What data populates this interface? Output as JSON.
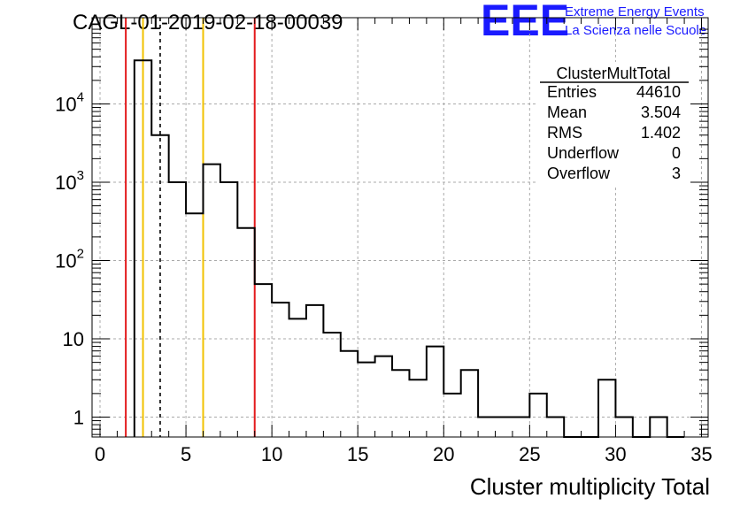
{
  "header": {
    "title": "CAGL-01-2019-02-18-00039",
    "logo": {
      "mark": "EEE",
      "line1": "Extreme Energy Events",
      "line2": "La Scienza nelle Scuole",
      "color": "#1a1aff"
    }
  },
  "stats": {
    "name": "ClusterMultTotal",
    "rows": [
      {
        "label": "Entries",
        "value": "44610"
      },
      {
        "label": "Mean",
        "value": "3.504"
      },
      {
        "label": "RMS",
        "value": "1.402"
      },
      {
        "label": "Underflow",
        "value": "0"
      },
      {
        "label": "Overflow",
        "value": "3"
      }
    ]
  },
  "chart_data": {
    "type": "histogram",
    "xlabel": "Cluster multiplicity Total",
    "ylabel": "",
    "xlim": [
      -0.5,
      35.5
    ],
    "ylim": [
      0.5,
      70000
    ],
    "yscale": "log",
    "grid": true,
    "bin_width": 1,
    "bins": [
      {
        "x": 2.5,
        "count": 36000
      },
      {
        "x": 3.5,
        "count": 4000
      },
      {
        "x": 4.5,
        "count": 1000
      },
      {
        "x": 5.5,
        "count": 400
      },
      {
        "x": 6.5,
        "count": 1700
      },
      {
        "x": 7.5,
        "count": 1000
      },
      {
        "x": 8.5,
        "count": 260
      },
      {
        "x": 9.5,
        "count": 50
      },
      {
        "x": 10.5,
        "count": 29
      },
      {
        "x": 11.5,
        "count": 18
      },
      {
        "x": 12.5,
        "count": 27
      },
      {
        "x": 13.5,
        "count": 12
      },
      {
        "x": 14.5,
        "count": 7
      },
      {
        "x": 15.5,
        "count": 5
      },
      {
        "x": 16.5,
        "count": 6
      },
      {
        "x": 17.5,
        "count": 4
      },
      {
        "x": 18.5,
        "count": 3
      },
      {
        "x": 19.5,
        "count": 8
      },
      {
        "x": 20.5,
        "count": 2
      },
      {
        "x": 21.5,
        "count": 4
      },
      {
        "x": 22.5,
        "count": 1
      },
      {
        "x": 23.5,
        "count": 1
      },
      {
        "x": 24.5,
        "count": 1
      },
      {
        "x": 25.5,
        "count": 2
      },
      {
        "x": 26.5,
        "count": 1
      },
      {
        "x": 27.5,
        "count": 0
      },
      {
        "x": 28.5,
        "count": 0
      },
      {
        "x": 29.5,
        "count": 3
      },
      {
        "x": 30.5,
        "count": 1
      },
      {
        "x": 31.5,
        "count": 0
      },
      {
        "x": 32.5,
        "count": 1
      },
      {
        "x": 33.5,
        "count": 0
      }
    ],
    "xticks": [
      {
        "value": 0,
        "label": "0"
      },
      {
        "value": 5,
        "label": "5"
      },
      {
        "value": 10,
        "label": "10"
      },
      {
        "value": 15,
        "label": "15"
      },
      {
        "value": 20,
        "label": "20"
      },
      {
        "value": 25,
        "label": "25"
      },
      {
        "value": 30,
        "label": "30"
      },
      {
        "value": 35,
        "label": "35"
      }
    ],
    "yticks": [
      {
        "value": 1,
        "base": "1",
        "exp": ""
      },
      {
        "value": 10,
        "base": "10",
        "exp": ""
      },
      {
        "value": 100,
        "base": "10",
        "exp": "2"
      },
      {
        "value": 1000,
        "base": "10",
        "exp": "3"
      },
      {
        "value": 10000,
        "base": "10",
        "exp": "4"
      }
    ],
    "markers": [
      {
        "x": 1.5,
        "color": "#e31a1c",
        "style": "solid"
      },
      {
        "x": 2.5,
        "color": "#f2c200",
        "style": "solid"
      },
      {
        "x": 3.5,
        "color": "#000000",
        "style": "dashed"
      },
      {
        "x": 6.0,
        "color": "#f2c200",
        "style": "solid"
      },
      {
        "x": 9.0,
        "color": "#e31a1c",
        "style": "solid"
      }
    ]
  }
}
